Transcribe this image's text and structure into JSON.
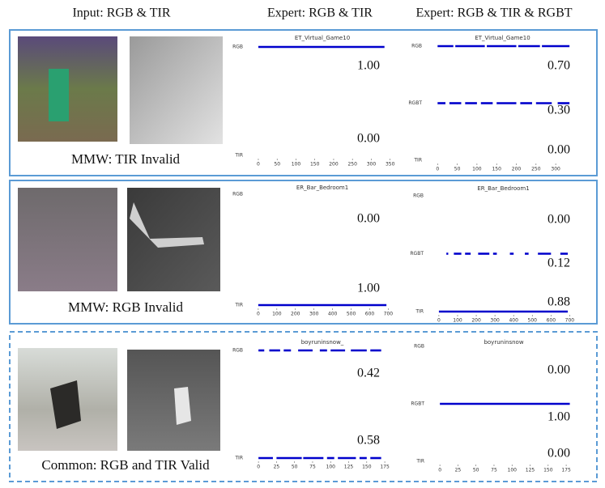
{
  "headers": [
    "Input: RGB & TIR",
    "Expert: RGB & TIR",
    "Expert: RGB & TIR & RGBT"
  ],
  "row_labels": [
    "MMW: TIR Invalid",
    "MMW: RGB Invalid",
    "Common: RGB and TIR Valid"
  ],
  "chart_data": [
    {
      "type": "strip",
      "title": "ET_Virtual_Game10",
      "levels": [
        "TIR",
        "RGB"
      ],
      "color": "#0000cc",
      "xlim": [
        -15,
        355
      ],
      "xticks": [
        0,
        50,
        100,
        150,
        200,
        250,
        300,
        350
      ],
      "series": [
        {
          "level": 1,
          "runs": [
            [
              0,
              335
            ]
          ]
        }
      ],
      "annotations": [
        "1.00",
        "0.00"
      ]
    },
    {
      "type": "strip",
      "title": "ET_Virtual_Game10",
      "levels": [
        "TIR",
        "RGBT",
        "RGB"
      ],
      "color": "#0000cc",
      "xlim": [
        -15,
        345
      ],
      "xticks": [
        0,
        50,
        100,
        150,
        200,
        250,
        300
      ],
      "series": [
        {
          "level": 2,
          "runs": [
            [
              0,
              40
            ],
            [
              45,
              120
            ],
            [
              125,
              200
            ],
            [
              205,
              260
            ],
            [
              265,
              335
            ]
          ]
        },
        {
          "level": 1,
          "runs": [
            [
              0,
              20
            ],
            [
              30,
              60
            ],
            [
              70,
              100
            ],
            [
              110,
              140
            ],
            [
              150,
              200
            ],
            [
              210,
              240
            ],
            [
              250,
              290
            ],
            [
              305,
              335
            ]
          ]
        }
      ],
      "annotations": [
        "0.70",
        "0.30",
        "0.00"
      ]
    },
    {
      "type": "strip",
      "title": "ER_Bar_Bedroom1",
      "levels": [
        "TIR",
        "RGB"
      ],
      "color": "#0000cc",
      "xlim": [
        -30,
        720
      ],
      "xticks": [
        0,
        100,
        200,
        300,
        400,
        500,
        600,
        700
      ],
      "series": [
        {
          "level": 0,
          "runs": [
            [
              0,
              690
            ]
          ]
        }
      ],
      "annotations": [
        "0.00",
        "1.00"
      ]
    },
    {
      "type": "strip",
      "title": "ER_Bar_Bedroom1",
      "levels": [
        "TIR",
        "RGBT",
        "RGB"
      ],
      "color": "#0000cc",
      "xlim": [
        -30,
        720
      ],
      "xticks": [
        0,
        100,
        200,
        300,
        400,
        500,
        600,
        700
      ],
      "series": [
        {
          "level": 0,
          "runs": [
            [
              0,
              690
            ]
          ]
        },
        {
          "level": 1,
          "runs": [
            [
              40,
              50
            ],
            [
              80,
              120
            ],
            [
              140,
              170
            ],
            [
              210,
              270
            ],
            [
              290,
              310
            ],
            [
              380,
              400
            ],
            [
              460,
              480
            ],
            [
              530,
              600
            ],
            [
              650,
              690
            ]
          ]
        }
      ],
      "annotations": [
        "0.00",
        "0.12",
        "0.88"
      ]
    },
    {
      "type": "strip",
      "title": "boyruninsnow_",
      "levels": [
        "TIR",
        "RGB"
      ],
      "color": "#0000cc",
      "xlim": [
        -8,
        185
      ],
      "xticks": [
        0,
        25,
        50,
        75,
        100,
        125,
        150,
        175
      ],
      "series": [
        {
          "level": 1,
          "runs": [
            [
              0,
              8
            ],
            [
              15,
              30
            ],
            [
              35,
              45
            ],
            [
              55,
              75
            ],
            [
              85,
              95
            ],
            [
              100,
              120
            ],
            [
              128,
              150
            ],
            [
              155,
              170
            ]
          ]
        },
        {
          "level": 0,
          "runs": [
            [
              0,
              20
            ],
            [
              25,
              60
            ],
            [
              62,
              90
            ],
            [
              95,
              105
            ],
            [
              110,
              135
            ],
            [
              140,
              150
            ],
            [
              155,
              170
            ]
          ]
        }
      ],
      "annotations": [
        "0.42",
        "0.58"
      ]
    },
    {
      "type": "strip",
      "title": "boyruninsnow",
      "levels": [
        "TIR",
        "RGBT",
        "RGB"
      ],
      "color": "#0000cc",
      "xlim": [
        -8,
        185
      ],
      "xticks": [
        0,
        25,
        50,
        75,
        100,
        125,
        150,
        175
      ],
      "series": [
        {
          "level": 1,
          "runs": [
            [
              0,
              180
            ]
          ]
        }
      ],
      "annotations": [
        "0.00",
        "1.00",
        "0.00"
      ]
    }
  ]
}
